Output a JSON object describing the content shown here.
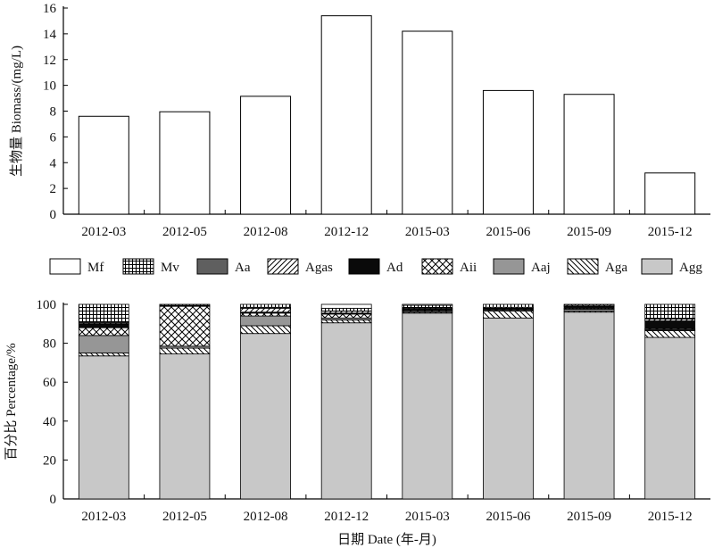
{
  "chart_data": [
    {
      "type": "bar",
      "categories": [
        "2012-03",
        "2012-05",
        "2012-08",
        "2012-12",
        "2015-03",
        "2015-06",
        "2015-09",
        "2015-12"
      ],
      "values": [
        7.6,
        7.95,
        9.15,
        15.4,
        14.2,
        9.6,
        9.3,
        3.2
      ],
      "title": "",
      "xlabel": "",
      "ylabel": "生物量 Biomass/(mg/L)",
      "ylim": [
        0,
        16
      ],
      "yticks": [
        0,
        2,
        4,
        6,
        8,
        10,
        12,
        14,
        16
      ],
      "grid": false,
      "bar_fill": "#ffffff",
      "bar_stroke": "#000000"
    },
    {
      "type": "bar",
      "stacked": true,
      "categories": [
        "2012-03",
        "2012-05",
        "2012-08",
        "2012-12",
        "2015-03",
        "2015-06",
        "2015-09",
        "2015-12"
      ],
      "series": [
        {
          "name": "Agg",
          "pattern": "solid-lightgray",
          "values": [
            73.5,
            74.5,
            85,
            90.5,
            95.5,
            93,
            96,
            83
          ]
        },
        {
          "name": "Aga",
          "pattern": "backslash-hatch",
          "values": [
            1.5,
            3,
            4,
            1.5,
            0.5,
            3.5,
            0.5,
            3.5
          ]
        },
        {
          "name": "Aaj",
          "pattern": "solid-midgray",
          "values": [
            9,
            1,
            5,
            1,
            0.5,
            0.5,
            1,
            0.5
          ]
        },
        {
          "name": "Aii",
          "pattern": "cross-hatch",
          "values": [
            4,
            20.5,
            1.5,
            2,
            0.5,
            0.5,
            0.5,
            0.5
          ]
        },
        {
          "name": "Ad",
          "pattern": "solid-black",
          "values": [
            2,
            0.5,
            0.5,
            0.5,
            0.5,
            0.5,
            1,
            4
          ]
        },
        {
          "name": "Agas",
          "pattern": "slash-hatch",
          "values": [
            0.5,
            0,
            2,
            1,
            0.5,
            0.5,
            0.5,
            1
          ]
        },
        {
          "name": "Aa",
          "pattern": "solid-darkgray",
          "values": [
            0.5,
            0,
            0.5,
            0,
            0,
            0,
            0,
            0
          ]
        },
        {
          "name": "Mv",
          "pattern": "grid",
          "values": [
            9,
            0.5,
            1.5,
            1.5,
            1.5,
            1.5,
            0.5,
            7.5
          ]
        },
        {
          "name": "Mf",
          "pattern": "solid-white",
          "values": [
            0,
            0,
            0,
            2,
            0.5,
            0,
            0,
            0
          ]
        }
      ],
      "title": "",
      "xlabel": "日期 Date (年-月)",
      "ylabel": "百分比 Percentage/%",
      "ylim": [
        0,
        100
      ],
      "yticks": [
        0,
        20,
        40,
        60,
        80,
        100
      ],
      "grid": false,
      "legend_placement": "top",
      "legend_order": [
        "Mf",
        "Mv",
        "Aa",
        "Agas",
        "Ad",
        "Aii",
        "Aaj",
        "Aga",
        "Agg"
      ]
    }
  ]
}
